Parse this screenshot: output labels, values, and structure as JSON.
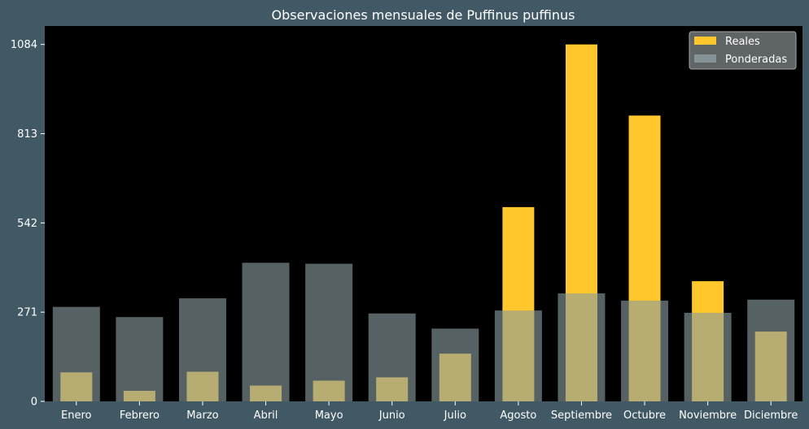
{
  "chart_data": {
    "type": "bar",
    "title": "Observaciones mensuales de Puffinus puffinus",
    "xlabel": "",
    "ylabel": "",
    "categories": [
      "Enero",
      "Febrero",
      "Marzo",
      "Abril",
      "Mayo",
      "Junio",
      "Julio",
      "Agosto",
      "Septiembre",
      "Octubre",
      "Noviembre",
      "Diciembre"
    ],
    "series": [
      {
        "name": "Reales",
        "color": "#ffc72c",
        "values": [
          88,
          32,
          90,
          48,
          63,
          73,
          145,
          590,
          1084,
          868,
          365,
          212
        ]
      },
      {
        "name": "Ponderadas",
        "color": "#8b9ca0",
        "values": [
          287,
          256,
          313,
          421,
          418,
          267,
          221,
          276,
          328,
          306,
          269,
          309
        ]
      }
    ],
    "yticks": [
      0,
      271,
      542,
      813,
      1084
    ],
    "ylim": [
      0,
      1140
    ],
    "legend": "top-right",
    "grid": false,
    "background": "#000000",
    "figure_background": "#415964"
  }
}
